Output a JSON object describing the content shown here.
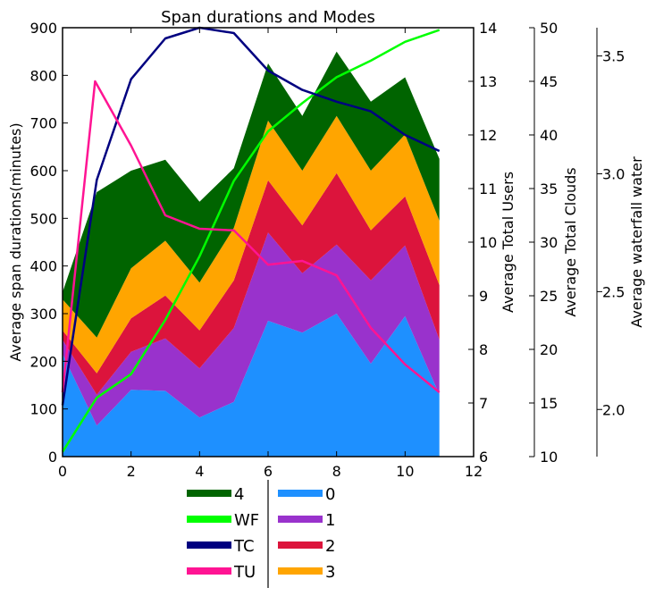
{
  "chart_data": {
    "type": "area",
    "title": "Span durations and Modes",
    "x": [
      0,
      1,
      2,
      3,
      4,
      5,
      6,
      7,
      8,
      9,
      10,
      11
    ],
    "xlim": [
      0,
      12
    ],
    "xticks": [
      "0",
      "2",
      "4",
      "6",
      "8",
      "10",
      "12"
    ],
    "stack_ylabel": "Average span durations(minutes)",
    "stack_ylim": [
      0,
      900
    ],
    "stack_yticks": [
      "0",
      "100",
      "200",
      "300",
      "400",
      "500",
      "600",
      "700",
      "800",
      "900"
    ],
    "stacked_series": [
      {
        "name": "0",
        "color": "#1e90ff",
        "values": [
          215,
          65,
          140,
          138,
          82,
          115,
          285,
          260,
          300,
          195,
          295,
          130
        ]
      },
      {
        "name": "1",
        "color": "#9932cc",
        "values": [
          30,
          65,
          80,
          110,
          103,
          155,
          185,
          125,
          145,
          175,
          148,
          115
        ]
      },
      {
        "name": "2",
        "color": "#dc143c",
        "values": [
          20,
          45,
          70,
          90,
          80,
          100,
          110,
          100,
          150,
          105,
          103,
          115
        ]
      },
      {
        "name": "3",
        "color": "#ffa500",
        "values": [
          65,
          75,
          105,
          115,
          100,
          110,
          125,
          115,
          120,
          125,
          130,
          135
        ]
      },
      {
        "name": "4",
        "color": "#006400",
        "values": [
          15,
          305,
          205,
          170,
          170,
          125,
          120,
          115,
          135,
          145,
          120,
          130
        ]
      }
    ],
    "line_series": [
      {
        "name": "WF",
        "color": "#00ff00",
        "axis": "waterfall",
        "x": [
          0,
          1,
          2,
          3,
          4,
          5,
          6,
          7,
          8,
          9,
          10,
          11
        ],
        "values": [
          1.82,
          2.05,
          2.15,
          2.38,
          2.65,
          2.97,
          3.18,
          3.3,
          3.41,
          3.48,
          3.56,
          3.61
        ]
      },
      {
        "name": "TC",
        "color": "#000080",
        "axis": "clouds",
        "x": [
          0,
          1,
          2,
          3,
          4,
          5,
          6,
          7,
          8,
          9,
          10,
          11
        ],
        "values": [
          14.8,
          35.8,
          45.2,
          49.0,
          50.0,
          49.5,
          46.0,
          44.2,
          43.1,
          42.2,
          40.0,
          38.5
        ]
      },
      {
        "name": "TU",
        "color": "#ff1493",
        "axis": "users",
        "x": [
          0,
          0.95,
          2,
          3,
          4,
          5,
          6,
          7,
          8,
          9,
          10,
          11
        ],
        "values": [
          7.2,
          13.0,
          11.8,
          10.5,
          10.25,
          10.22,
          9.58,
          9.65,
          9.38,
          8.4,
          7.72,
          7.2
        ]
      }
    ],
    "axes": {
      "users": {
        "label": "Average Total Users",
        "lim": [
          6,
          14
        ],
        "ticks": [
          "6",
          "7",
          "8",
          "9",
          "10",
          "11",
          "12",
          "13",
          "14"
        ]
      },
      "clouds": {
        "label": "Average Total Clouds",
        "lim": [
          10,
          50
        ],
        "ticks": [
          "10",
          "15",
          "20",
          "25",
          "30",
          "35",
          "40",
          "45",
          "50"
        ]
      },
      "waterfall": {
        "label": "Average waterfall water",
        "lim": [
          1.8,
          3.62
        ],
        "ticks": [
          "2.0",
          "2.5",
          "3.0",
          "3.5"
        ]
      }
    },
    "legend": {
      "placement": "bottom",
      "left_column": [
        "4",
        "WF",
        "TC",
        "TU"
      ],
      "right_column": [
        "0",
        "1",
        "2",
        "3"
      ]
    }
  }
}
